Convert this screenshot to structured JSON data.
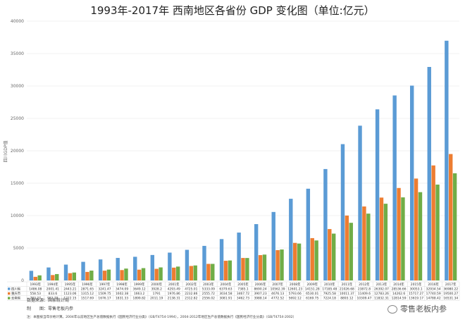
{
  "chart_data": {
    "type": "bar",
    "title": "1993年-2017年 西南地区各省份 GDP 变化图（单位:亿元）",
    "ylabel": "四川GDP值",
    "ylim": [
      0,
      40000
    ],
    "yticks": [
      "0",
      "5000",
      "10000",
      "15000",
      "20000",
      "25000",
      "30000",
      "35000",
      "40000"
    ],
    "categories": [
      "1993年",
      "1994年",
      "1995年",
      "1996年",
      "1997年",
      "1998年",
      "1999年",
      "2000年",
      "2001年",
      "2002年",
      "2003年",
      "2004年",
      "2005年",
      "2006年",
      "2007年",
      "2008年",
      "2009年",
      "2010年",
      "2011年",
      "2012年",
      "2013年",
      "2014年",
      "2015年",
      "2016年",
      "2017年"
    ],
    "series": [
      {
        "name": "四川省",
        "color": "#5b9bd5",
        "values": [
          1486.08,
          2001.41,
          2443.21,
          2871.65,
          3241.47,
          3474.09,
          3649.12,
          3928.2,
          4293.49,
          4725.01,
          5333.09,
          6379.63,
          7385.1,
          8690.24,
          10562.39,
          12601.23,
          14151.28,
          17185.48,
          21026.68,
          23872.8,
          26392.07,
          28536.66,
          30053.1,
          32934.54,
          36980.22
        ],
        "labels": [
          "1486.08",
          "2001.41",
          "2443.21",
          "2871.65",
          "3241.47",
          "3474.09",
          "3649.12",
          "3928.2",
          "4293.49",
          "4725.01",
          "5333.09",
          "6379.63",
          "7385.1",
          "8690.24",
          "10562.39",
          "12601.23",
          "14151.28",
          "17185.48",
          "21026.68",
          "23872.8",
          "26392.07",
          "28536.66",
          "30053.1",
          "32934.54",
          "36980.22"
        ]
      },
      {
        "name": "重庆市",
        "color": "#ed7d31",
        "values": [
          558.53,
          833.6,
          1123.06,
          1315.12,
          1509.75,
          1602.38,
          1663.2,
          1791.0,
          1976.86,
          2232.86,
          2555.72,
          3034.58,
          3467.72,
          3907.23,
          4676.13,
          5793.66,
          6530.01,
          7925.58,
          10011.37,
          11409.6,
          12783.26,
          14262.6,
          15717.27,
          17740.59,
          19500.27
        ],
        "labels": [
          "558.53",
          "833.6",
          "1123.06",
          "1315.12",
          "1509.75",
          "1602.38",
          "1663.2",
          "1791",
          "1976.86",
          "2232.86",
          "2555.72",
          "3034.58",
          "3467.72",
          "3907.23",
          "4676.13",
          "5793.66",
          "6530.01",
          "7925.58",
          "10011.37",
          "11409.6",
          "12783.26",
          "14262.6",
          "15717.27",
          "17740.59",
          "19500.27"
        ]
      },
      {
        "name": "云南省",
        "color": "#70ad47",
        "values": [
          783.27,
          983.78,
          1222.15,
          1517.69,
          1676.17,
          1831.33,
          1899.82,
          2011.19,
          2138.31,
          2312.82,
          2556.02,
          3081.91,
          3462.73,
          3988.14,
          4772.52,
          5692.12,
          6169.75,
          7224.18,
          8893.12,
          10309.47,
          11832.31,
          12814.59,
          13619.17,
          14788.42,
          16531.34
        ],
        "labels": [
          "783.27",
          "983.78",
          "1222.15",
          "1517.69",
          "1676.17",
          "1831.33",
          "1899.82",
          "2011.19",
          "2138.31",
          "2312.82",
          "2556.02",
          "3081.91",
          "3462.73",
          "3988.14",
          "4772.52",
          "5692.12",
          "6169.75",
          "7224.18",
          "8893.12",
          "10309.47",
          "11832.31",
          "12814.59",
          "13619.17",
          "14788.42",
          "16531.34"
        ]
      }
    ]
  },
  "footnotes": {
    "source": "数据来源：国家统计局",
    "producer_label": "制　　图：",
    "producer": "零售老板内参",
    "note": "注：本图按当年价格计算。2004年以前地区生产总值数据执行《国民经济行业分类》（GB/T4754-1994），2004-2012年地区生产总值数据执行《国民经济行业分类》（GB/T4754-2002）"
  },
  "watermark": {
    "text": "零售老板内参"
  }
}
